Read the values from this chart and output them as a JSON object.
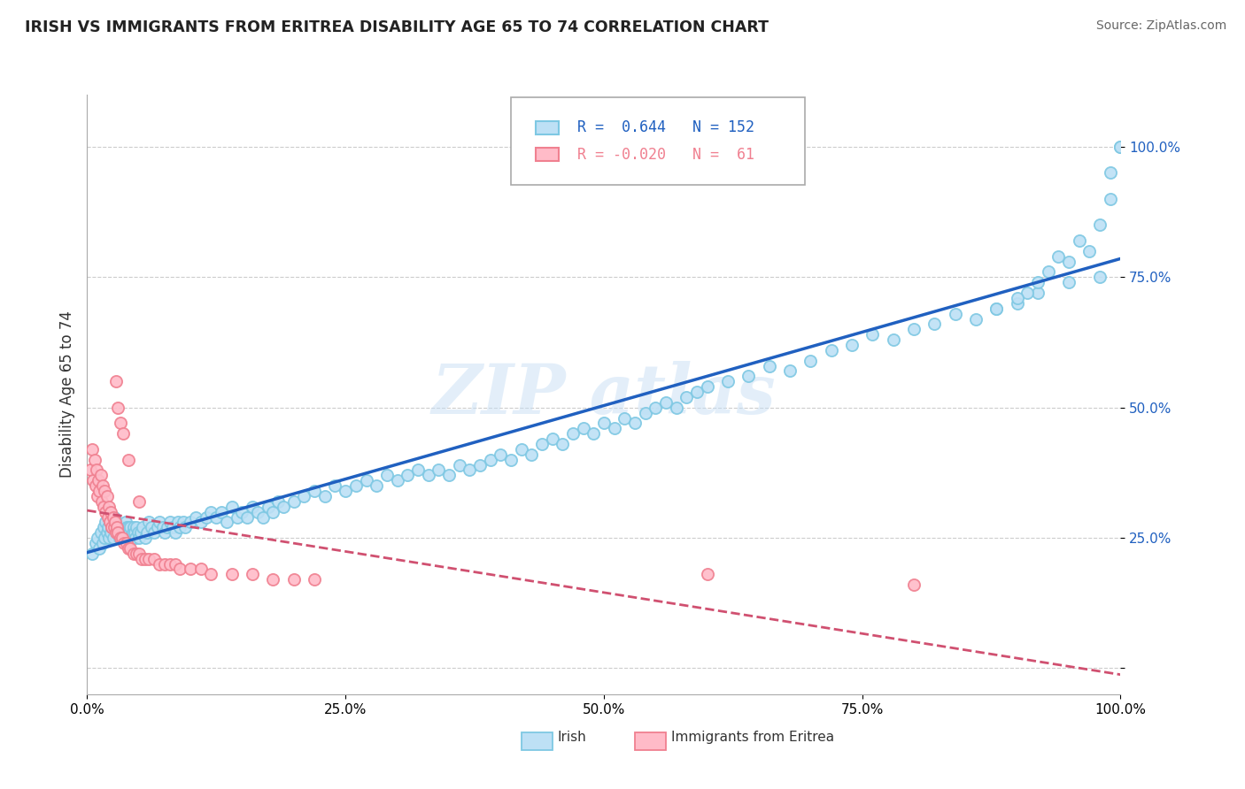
{
  "title": "IRISH VS IMMIGRANTS FROM ERITREA DISABILITY AGE 65 TO 74 CORRELATION CHART",
  "source": "Source: ZipAtlas.com",
  "ylabel": "Disability Age 65 to 74",
  "xlim": [
    0.0,
    1.0
  ],
  "ylim": [
    -0.05,
    1.1
  ],
  "watermark": "ZIPAtlas",
  "legend_irish_r": "0.644",
  "legend_irish_n": "152",
  "legend_eritrea_r": "-0.020",
  "legend_eritrea_n": "61",
  "irish_color": "#7EC8E3",
  "irish_fill": "#BDE0F5",
  "eritrea_color": "#F08090",
  "eritrea_fill": "#FFBBC8",
  "irish_line_color": "#2060C0",
  "eritrea_line_color": "#D05070",
  "irish_scatter_x": [
    0.005,
    0.008,
    0.01,
    0.012,
    0.013,
    0.015,
    0.016,
    0.017,
    0.018,
    0.019,
    0.02,
    0.021,
    0.022,
    0.023,
    0.024,
    0.025,
    0.026,
    0.027,
    0.028,
    0.029,
    0.03,
    0.031,
    0.032,
    0.033,
    0.034,
    0.035,
    0.036,
    0.037,
    0.038,
    0.039,
    0.04,
    0.041,
    0.042,
    0.043,
    0.044,
    0.045,
    0.046,
    0.047,
    0.048,
    0.049,
    0.05,
    0.052,
    0.054,
    0.056,
    0.058,
    0.06,
    0.062,
    0.065,
    0.068,
    0.07,
    0.073,
    0.075,
    0.078,
    0.08,
    0.083,
    0.085,
    0.088,
    0.09,
    0.093,
    0.095,
    0.1,
    0.105,
    0.11,
    0.115,
    0.12,
    0.125,
    0.13,
    0.135,
    0.14,
    0.145,
    0.15,
    0.155,
    0.16,
    0.165,
    0.17,
    0.175,
    0.18,
    0.185,
    0.19,
    0.2,
    0.21,
    0.22,
    0.23,
    0.24,
    0.25,
    0.26,
    0.27,
    0.28,
    0.29,
    0.3,
    0.31,
    0.32,
    0.33,
    0.34,
    0.35,
    0.36,
    0.37,
    0.38,
    0.39,
    0.4,
    0.41,
    0.42,
    0.43,
    0.44,
    0.45,
    0.46,
    0.47,
    0.48,
    0.49,
    0.5,
    0.51,
    0.52,
    0.53,
    0.54,
    0.55,
    0.56,
    0.57,
    0.58,
    0.59,
    0.6,
    0.62,
    0.64,
    0.66,
    0.68,
    0.7,
    0.72,
    0.74,
    0.76,
    0.78,
    0.8,
    0.82,
    0.84,
    0.86,
    0.88,
    0.9,
    0.92,
    0.95,
    0.98,
    1.0,
    1.0,
    0.99,
    0.99,
    0.98,
    0.97,
    0.96,
    0.95,
    0.94,
    0.93,
    0.92,
    0.91,
    0.9,
    0.88
  ],
  "irish_scatter_y": [
    0.22,
    0.24,
    0.25,
    0.23,
    0.26,
    0.24,
    0.27,
    0.25,
    0.28,
    0.26,
    0.27,
    0.25,
    0.28,
    0.26,
    0.27,
    0.25,
    0.29,
    0.27,
    0.28,
    0.26,
    0.27,
    0.25,
    0.26,
    0.27,
    0.25,
    0.26,
    0.25,
    0.28,
    0.27,
    0.26,
    0.27,
    0.26,
    0.27,
    0.25,
    0.26,
    0.27,
    0.26,
    0.25,
    0.27,
    0.26,
    0.25,
    0.26,
    0.27,
    0.25,
    0.26,
    0.28,
    0.27,
    0.26,
    0.27,
    0.28,
    0.27,
    0.26,
    0.27,
    0.28,
    0.27,
    0.26,
    0.28,
    0.27,
    0.28,
    0.27,
    0.28,
    0.29,
    0.28,
    0.29,
    0.3,
    0.29,
    0.3,
    0.28,
    0.31,
    0.29,
    0.3,
    0.29,
    0.31,
    0.3,
    0.29,
    0.31,
    0.3,
    0.32,
    0.31,
    0.32,
    0.33,
    0.34,
    0.33,
    0.35,
    0.34,
    0.35,
    0.36,
    0.35,
    0.37,
    0.36,
    0.37,
    0.38,
    0.37,
    0.38,
    0.37,
    0.39,
    0.38,
    0.39,
    0.4,
    0.41,
    0.4,
    0.42,
    0.41,
    0.43,
    0.44,
    0.43,
    0.45,
    0.46,
    0.45,
    0.47,
    0.46,
    0.48,
    0.47,
    0.49,
    0.5,
    0.51,
    0.5,
    0.52,
    0.53,
    0.54,
    0.55,
    0.56,
    0.58,
    0.57,
    0.59,
    0.61,
    0.62,
    0.64,
    0.63,
    0.65,
    0.66,
    0.68,
    0.67,
    0.69,
    0.7,
    0.72,
    0.74,
    0.75,
    1.0,
    1.0,
    0.95,
    0.9,
    0.85,
    0.8,
    0.82,
    0.78,
    0.79,
    0.76,
    0.74,
    0.72,
    0.71,
    0.69
  ],
  "eritrea_scatter_x": [
    0.003,
    0.005,
    0.006,
    0.007,
    0.008,
    0.009,
    0.01,
    0.011,
    0.012,
    0.013,
    0.014,
    0.015,
    0.016,
    0.017,
    0.018,
    0.019,
    0.02,
    0.021,
    0.022,
    0.023,
    0.024,
    0.025,
    0.026,
    0.027,
    0.028,
    0.029,
    0.03,
    0.032,
    0.034,
    0.036,
    0.038,
    0.04,
    0.042,
    0.045,
    0.048,
    0.05,
    0.053,
    0.056,
    0.06,
    0.065,
    0.07,
    0.075,
    0.08,
    0.085,
    0.09,
    0.1,
    0.11,
    0.12,
    0.14,
    0.16,
    0.18,
    0.2,
    0.22,
    0.028,
    0.03,
    0.032,
    0.035,
    0.04,
    0.05,
    0.6,
    0.8
  ],
  "eritrea_scatter_y": [
    0.38,
    0.42,
    0.36,
    0.4,
    0.35,
    0.38,
    0.33,
    0.36,
    0.34,
    0.37,
    0.32,
    0.35,
    0.31,
    0.34,
    0.3,
    0.33,
    0.29,
    0.31,
    0.28,
    0.3,
    0.27,
    0.29,
    0.27,
    0.28,
    0.26,
    0.27,
    0.26,
    0.25,
    0.25,
    0.24,
    0.24,
    0.23,
    0.23,
    0.22,
    0.22,
    0.22,
    0.21,
    0.21,
    0.21,
    0.21,
    0.2,
    0.2,
    0.2,
    0.2,
    0.19,
    0.19,
    0.19,
    0.18,
    0.18,
    0.18,
    0.17,
    0.17,
    0.17,
    0.55,
    0.5,
    0.47,
    0.45,
    0.4,
    0.32,
    0.18,
    0.16
  ],
  "grid_color": "#CCCCCC",
  "bg_color": "#FFFFFF",
  "ytick_positions": [
    0.0,
    0.25,
    0.5,
    0.75,
    1.0
  ],
  "ytick_labels": [
    "",
    "25.0%",
    "50.0%",
    "75.0%",
    "100.0%"
  ],
  "xtick_positions": [
    0.0,
    0.25,
    0.5,
    0.75,
    1.0
  ],
  "xtick_labels": [
    "0.0%",
    "25.0%",
    "50.0%",
    "75.0%",
    "100.0%"
  ]
}
